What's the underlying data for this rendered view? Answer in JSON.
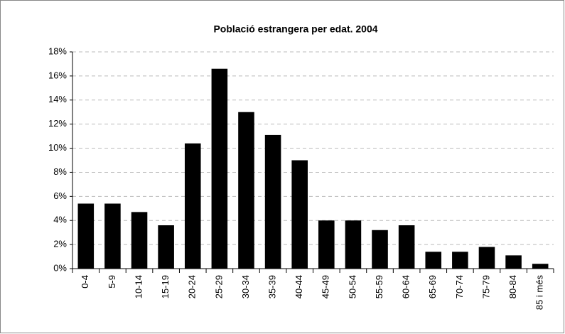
{
  "chart_data": {
    "type": "bar",
    "title": "Població estrangera per edat. 2004",
    "categories": [
      "0-4",
      "5-9",
      "10-14",
      "15-19",
      "20-24",
      "25-29",
      "30-34",
      "35-39",
      "40-44",
      "45-49",
      "50-54",
      "55-59",
      "60-64",
      "65-69",
      "70-74",
      "75-79",
      "80-84",
      "85 i més"
    ],
    "values": [
      5.4,
      5.4,
      4.7,
      3.6,
      10.4,
      16.6,
      13.0,
      11.1,
      9.0,
      4.0,
      4.0,
      3.2,
      3.6,
      1.4,
      1.4,
      1.8,
      1.1,
      0.4
    ],
    "color": "#000000",
    "ylim": [
      0,
      18
    ],
    "yticks": [
      {
        "value": 0,
        "label": "0%"
      },
      {
        "value": 2,
        "label": "2%"
      },
      {
        "value": 4,
        "label": "4%"
      },
      {
        "value": 6,
        "label": "6%"
      },
      {
        "value": 8,
        "label": "8%"
      },
      {
        "value": 10,
        "label": "10%"
      },
      {
        "value": 12,
        "label": "12%"
      },
      {
        "value": 14,
        "label": "14%"
      },
      {
        "value": 16,
        "label": "16%"
      },
      {
        "value": 18,
        "label": "18%"
      }
    ],
    "grid": true
  }
}
